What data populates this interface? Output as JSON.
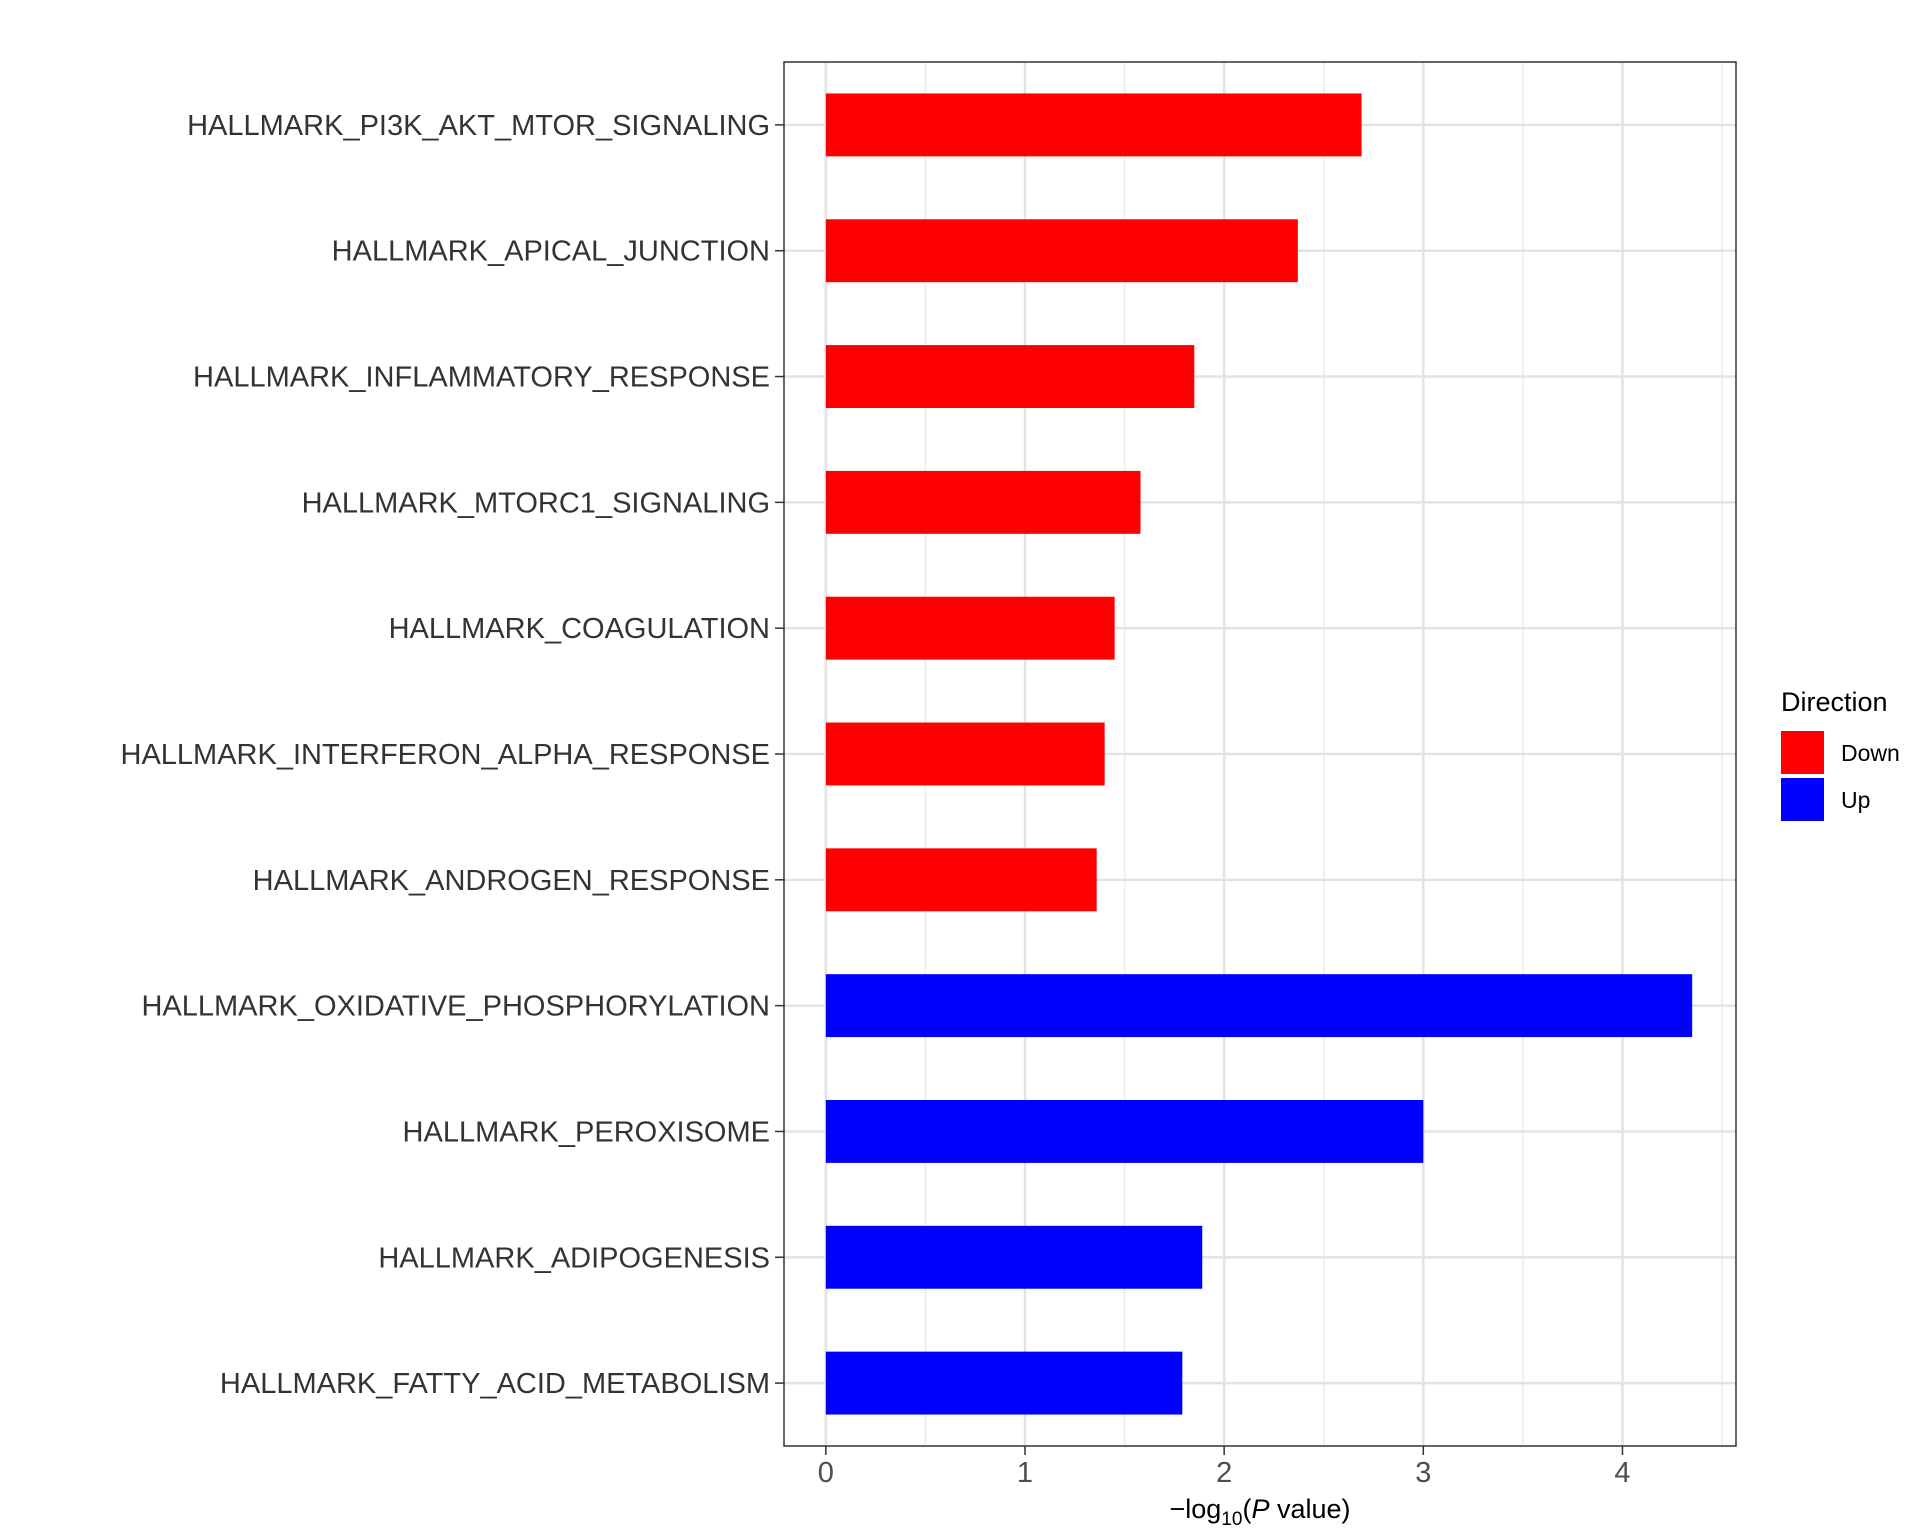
{
  "chart_data": {
    "type": "bar",
    "orientation": "horizontal",
    "categories": [
      "HALLMARK_PI3K_AKT_MTOR_SIGNALING",
      "HALLMARK_APICAL_JUNCTION",
      "HALLMARK_INFLAMMATORY_RESPONSE",
      "HALLMARK_MTORC1_SIGNALING",
      "HALLMARK_COAGULATION",
      "HALLMARK_INTERFERON_ALPHA_RESPONSE",
      "HALLMARK_ANDROGEN_RESPONSE",
      "HALLMARK_OXIDATIVE_PHOSPHORYLATION",
      "HALLMARK_PEROXISOME",
      "HALLMARK_ADIPOGENESIS",
      "HALLMARK_FATTY_ACID_METABOLISM"
    ],
    "values": [
      2.69,
      2.37,
      1.85,
      1.58,
      1.45,
      1.4,
      1.36,
      4.35,
      3.0,
      1.89,
      1.79
    ],
    "direction": [
      "Down",
      "Down",
      "Down",
      "Down",
      "Down",
      "Down",
      "Down",
      "Up",
      "Up",
      "Up",
      "Up"
    ],
    "xlabel": {
      "prefix": "−log",
      "subscript": "10",
      "open": "(",
      "italic": "P",
      "suffix": " value)"
    },
    "ylabel": "",
    "xlim": [
      -0.21,
      4.57
    ],
    "xticks": [
      "0",
      "1",
      "2",
      "3",
      "4"
    ],
    "grid": true,
    "legend": {
      "title": "Direction",
      "position": "right",
      "entries": [
        {
          "label": "Down",
          "color": "#ff0000"
        },
        {
          "label": "Up",
          "color": "#0000ff"
        }
      ]
    },
    "colors": {
      "Down": "#ff0000",
      "Up": "#0000ff"
    }
  }
}
